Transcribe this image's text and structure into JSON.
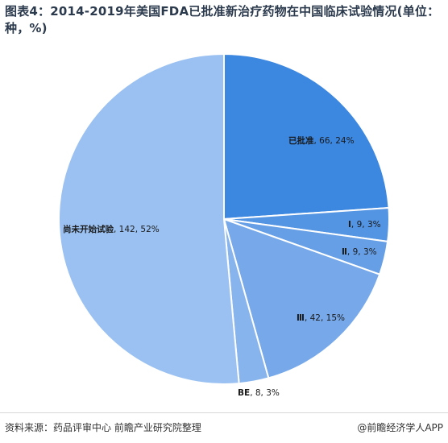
{
  "header": {
    "title": "图表4：2014-2019年美国FDA已批准新治疗药物在中国临床试验情况(单位：种，%)"
  },
  "footer": {
    "source": "资料来源：药品评审中心 前瞻产业研究院整理",
    "brand": "@前瞻经济学人APP"
  },
  "colors": {
    "approved": "#3c87e0",
    "phase1": "#5394e3",
    "phase2": "#669fe6",
    "phase3": "#77a9ea",
    "be": "#88b4ed",
    "not_started": "#9ac1f1",
    "stroke": "#ffffff"
  },
  "chart_data": {
    "type": "pie",
    "title": "2014-2019年美国FDA已批准新治疗药物在中国临床试验情况",
    "unit": "种，%",
    "start_angle_deg": 0,
    "direction": "clockwise",
    "slices": [
      {
        "label": "已批准",
        "value": 66,
        "percent": "24%",
        "color_key": "approved"
      },
      {
        "label": "Ⅰ",
        "value": 9,
        "percent": "3%",
        "color_key": "phase1"
      },
      {
        "label": "Ⅱ",
        "value": 9,
        "percent": "3%",
        "color_key": "phase2"
      },
      {
        "label": "Ⅲ",
        "value": 42,
        "percent": "15%",
        "color_key": "phase3"
      },
      {
        "label": "BE",
        "value": 8,
        "percent": "3%",
        "color_key": "be"
      },
      {
        "label": "尚未开始试验",
        "value": 142,
        "percent": "52%",
        "color_key": "not_started"
      }
    ]
  }
}
